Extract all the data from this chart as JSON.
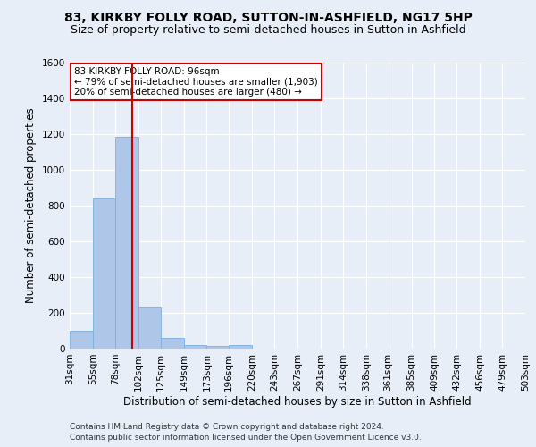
{
  "title": "83, KIRKBY FOLLY ROAD, SUTTON-IN-ASHFIELD, NG17 5HP",
  "subtitle": "Size of property relative to semi-detached houses in Sutton in Ashfield",
  "xlabel": "Distribution of semi-detached houses by size in Sutton in Ashfield",
  "ylabel": "Number of semi-detached properties",
  "footer_line1": "Contains HM Land Registry data © Crown copyright and database right 2024.",
  "footer_line2": "Contains public sector information licensed under the Open Government Licence v3.0.",
  "annotation_line1": "83 KIRKBY FOLLY ROAD: 96sqm",
  "annotation_line2": "← 79% of semi-detached houses are smaller (1,903)",
  "annotation_line3": "20% of semi-detached houses are larger (480) →",
  "property_size": 96,
  "bin_edges": [
    31,
    55,
    78,
    102,
    125,
    149,
    173,
    196,
    220,
    243,
    267,
    291,
    314,
    338,
    361,
    385,
    409,
    432,
    456,
    479,
    503
  ],
  "bin_counts": [
    100,
    840,
    1185,
    235,
    62,
    20,
    15,
    20,
    0,
    0,
    0,
    0,
    0,
    0,
    0,
    0,
    0,
    0,
    0,
    0
  ],
  "bar_color": "#aec6e8",
  "bar_edge_color": "#7aafe0",
  "vline_color": "#cc0000",
  "vline_x": 96,
  "ylim": [
    0,
    1600
  ],
  "yticks": [
    0,
    200,
    400,
    600,
    800,
    1000,
    1200,
    1400,
    1600
  ],
  "background_color": "#e8eef8",
  "grid_color": "#ffffff",
  "annotation_box_color": "#ffffff",
  "annotation_box_edge": "#cc0000",
  "title_fontsize": 10,
  "subtitle_fontsize": 9,
  "xlabel_fontsize": 8.5,
  "ylabel_fontsize": 8.5,
  "tick_fontsize": 7.5,
  "annotation_fontsize": 7.5,
  "footer_fontsize": 6.5
}
